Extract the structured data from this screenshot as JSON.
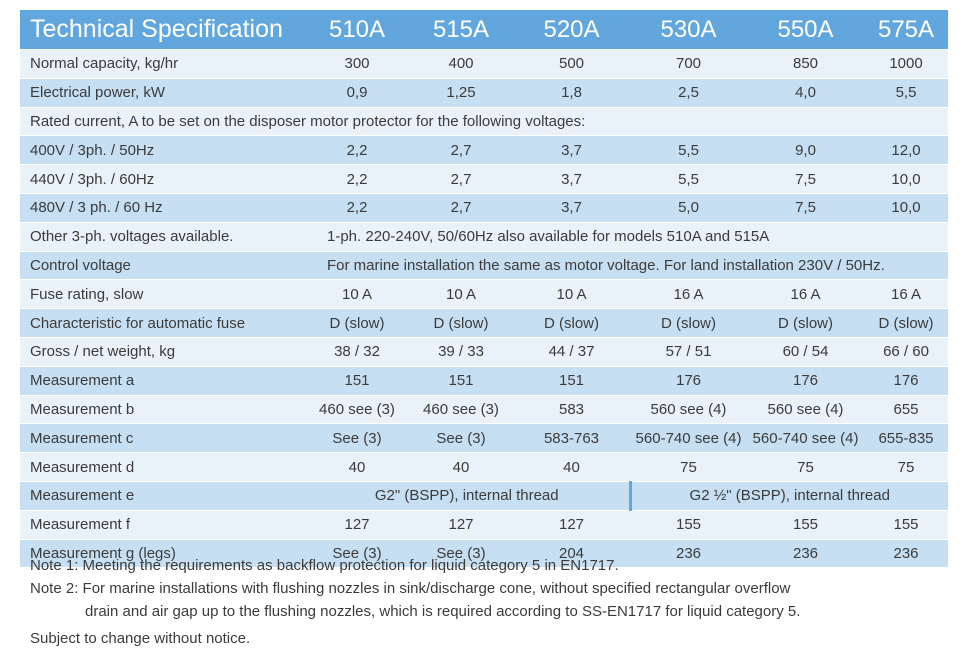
{
  "header": {
    "title": "Technical Specification",
    "models": [
      "510A",
      "515A",
      "520A",
      "530A",
      "550A",
      "575A"
    ]
  },
  "rows": {
    "normal_capacity": {
      "label": "Normal capacity, kg/hr",
      "values": [
        "300",
        "400",
        "500",
        "700",
        "850",
        "1000"
      ]
    },
    "electrical_power": {
      "label": "Electrical power, kW",
      "values": [
        "0,9",
        "1,25",
        "1,8",
        "2,5",
        "4,0",
        "5,5"
      ]
    },
    "rated_current": {
      "label": "Rated current, A to be set on the disposer motor protector for the following voltages:"
    },
    "v400": {
      "label": "400V /  3ph. /  50Hz",
      "values": [
        "2,2",
        "2,7",
        "3,7",
        "5,5",
        "9,0",
        "12,0"
      ]
    },
    "v440": {
      "label": "440V /  3ph. /  60Hz",
      "values": [
        "2,2",
        "2,7",
        "3,7",
        "5,5",
        "7,5",
        "10,0"
      ]
    },
    "v480": {
      "label": "480V / 3 ph. / 60 Hz",
      "values": [
        "2,2",
        "2,7",
        "3,7",
        "5,0",
        "7,5",
        "10,0"
      ]
    },
    "other_voltages": {
      "label": "Other 3-ph. voltages available.",
      "text": "1-ph. 220-240V, 50/60Hz also available for models 510A and 515A"
    },
    "control_voltage": {
      "label": "Control voltage",
      "text": "For marine installation the same as motor voltage. For land installation 230V / 50Hz."
    },
    "fuse_rating": {
      "label": "Fuse rating, slow",
      "values": [
        "10 A",
        "10 A",
        "10 A",
        "16 A",
        "16 A",
        "16 A"
      ]
    },
    "characteristic": {
      "label": "Characteristic for automatic fuse",
      "values": [
        "D (slow)",
        "D (slow)",
        "D (slow)",
        "D (slow)",
        "D (slow)",
        "D (slow)"
      ]
    },
    "weight": {
      "label": "Gross / net weight, kg",
      "values": [
        "38 / 32",
        "39 / 33",
        "44 / 37",
        "57 / 51",
        "60 / 54",
        "66 / 60"
      ]
    },
    "meas_a": {
      "label": "Measurement a",
      "values": [
        "151",
        "151",
        "151",
        "176",
        "176",
        "176"
      ]
    },
    "meas_b": {
      "label": "Measurement b",
      "values": [
        "460 see (3)",
        "460 see (3)",
        "583",
        "560 see (4)",
        "560 see (4)",
        "655"
      ]
    },
    "meas_c": {
      "label": "Measurement c",
      "values": [
        "See (3)",
        "See (3)",
        "583-763",
        "560-740 see (4)",
        "560-740 see (4)",
        "655-835"
      ]
    },
    "meas_d": {
      "label": "Measurement d",
      "values": [
        "40",
        "40",
        "40",
        "75",
        "75",
        "75"
      ]
    },
    "meas_e": {
      "label": "Measurement e",
      "left": "G2\" (BSPP), internal thread",
      "right": "G2 ½\" (BSPP), internal thread"
    },
    "meas_f": {
      "label": "Measurement f",
      "values": [
        "127",
        "127",
        "127",
        "155",
        "155",
        "155"
      ]
    },
    "meas_g": {
      "label": "Measurement g (legs)",
      "values": [
        "See (3)",
        "See (3)",
        "204",
        "236",
        "236",
        "236"
      ]
    }
  },
  "notes": {
    "note1": "Note 1: Meeting the requirements as backflow protection for liquid category 5 in EN1717.",
    "note2_line1": "Note 2: For marine installations with flushing nozzles in sink/discharge cone, without specified rectangular overflow",
    "note2_line2": "drain and air gap up to the flushing nozzles, which is required according to SS-EN1717 for liquid category 5."
  },
  "footer": "Subject to change without notice.",
  "colors": {
    "header_bg": "#61a7de",
    "row_light": "#e9f1f9",
    "row_dark": "#c7dff2"
  }
}
